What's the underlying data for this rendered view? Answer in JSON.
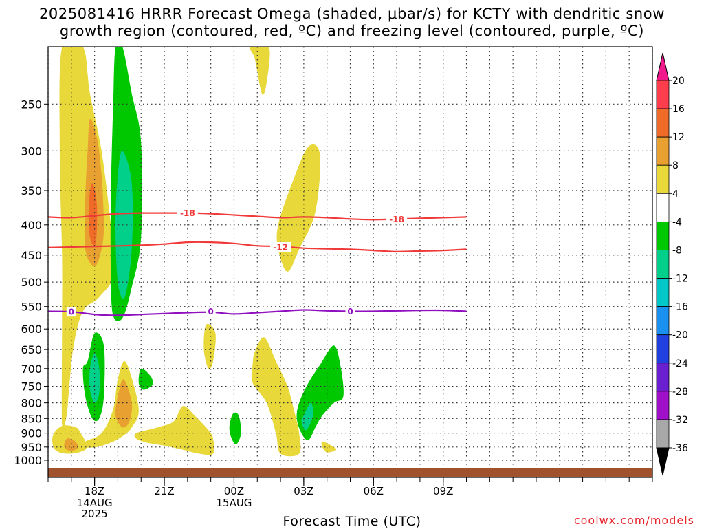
{
  "title_line1": "2025081416 HRRR Forecast Omega (shaded, μbar/s) for KCTY with dendritic snow",
  "title_line2": "growth region (contoured, red, ºC) and freezing level (contoured, purple, ºC)",
  "xlabel": "Forecast Time (UTC)",
  "credit": "coolwx.com/models",
  "chart_data": {
    "type": "heatmap",
    "title": "2025081416 HRRR Forecast Omega (shaded, μbar/s) for KCTY with dendritic snow growth region (contoured, red, ºC) and freezing level (contoured, purple, ºC)",
    "xlabel": "Forecast Time (UTC)",
    "ylabel": "",
    "x_range_hours": [
      16,
      42
    ],
    "y_axis": {
      "scale": "log-pressure",
      "reversed": true,
      "range_mb": [
        200,
        1030
      ],
      "ticks": [
        250,
        300,
        350,
        400,
        450,
        500,
        550,
        600,
        650,
        700,
        750,
        800,
        850,
        900,
        950,
        1000
      ]
    },
    "x_ticks": [
      {
        "hour": 18,
        "label": "18Z",
        "sub": [
          "14AUG",
          "2025"
        ]
      },
      {
        "hour": 21,
        "label": "21Z",
        "sub": []
      },
      {
        "hour": 24,
        "label": "00Z",
        "sub": [
          "15AUG"
        ]
      },
      {
        "hour": 27,
        "label": "03Z",
        "sub": []
      },
      {
        "hour": 30,
        "label": "06Z",
        "sub": []
      },
      {
        "hour": 33,
        "label": "09Z",
        "sub": []
      }
    ],
    "grid": true,
    "ground_color": "#a0522d",
    "colorbar": {
      "placement": "right",
      "labels": [
        "20",
        "16",
        "12",
        "8",
        "4",
        "-4",
        "-8",
        "-12",
        "-16",
        "-20",
        "-24",
        "-28",
        "-32",
        "-36"
      ],
      "colors": [
        "#ff3d4d",
        "#f06a28",
        "#e8a030",
        "#e8d83a",
        "#ffffff",
        "#00c800",
        "#00d08a",
        "#00c8c8",
        "#1a90f0",
        "#2040e0",
        "#6a1fd0",
        "#a010c8",
        "#a8a8a8"
      ],
      "top_arrow_color": "#f01a8c",
      "bottom_arrow_color": "#000000"
    },
    "contours": [
      {
        "name": "-18",
        "color": "#f03a3a",
        "points": [
          [
            16,
            388
          ],
          [
            17,
            389
          ],
          [
            18,
            386
          ],
          [
            19,
            383
          ],
          [
            20,
            382
          ],
          [
            21,
            382
          ],
          [
            22,
            382
          ],
          [
            23,
            383
          ],
          [
            24,
            385
          ],
          [
            25,
            387
          ],
          [
            26,
            389
          ],
          [
            27,
            388
          ],
          [
            28,
            389
          ],
          [
            29,
            391
          ],
          [
            30,
            392
          ],
          [
            31,
            391
          ],
          [
            32,
            390
          ],
          [
            33,
            389
          ],
          [
            34,
            388
          ]
        ],
        "label_at": [
          [
            22,
            382
          ],
          [
            31,
            391
          ]
        ]
      },
      {
        "name": "-12",
        "color": "#f03a3a",
        "points": [
          [
            16,
            437
          ],
          [
            17,
            436
          ],
          [
            18,
            435
          ],
          [
            19,
            434
          ],
          [
            20,
            433
          ],
          [
            21,
            431
          ],
          [
            22,
            428
          ],
          [
            23,
            428
          ],
          [
            24,
            430
          ],
          [
            25,
            434
          ],
          [
            26,
            435
          ],
          [
            27,
            438
          ],
          [
            28,
            439
          ],
          [
            29,
            440
          ],
          [
            30,
            442
          ],
          [
            31,
            444
          ],
          [
            32,
            443
          ],
          [
            33,
            442
          ],
          [
            34,
            440
          ]
        ],
        "label_at": [
          [
            26,
            436
          ]
        ]
      },
      {
        "name": "0",
        "color": "#9010c0",
        "points": [
          [
            16,
            560
          ],
          [
            17,
            561
          ],
          [
            18,
            567
          ],
          [
            19,
            569
          ],
          [
            20,
            567
          ],
          [
            21,
            565
          ],
          [
            22,
            563
          ],
          [
            23,
            562
          ],
          [
            24,
            566
          ],
          [
            25,
            563
          ],
          [
            26,
            560
          ],
          [
            27,
            557
          ],
          [
            28,
            559
          ],
          [
            29,
            560
          ],
          [
            30,
            560
          ],
          [
            31,
            559
          ],
          [
            32,
            558
          ],
          [
            33,
            558
          ],
          [
            34,
            560
          ]
        ],
        "label_at": [
          [
            17,
            561
          ],
          [
            23,
            560
          ],
          [
            29,
            560
          ]
        ]
      }
    ],
    "shaded_regions": [
      {
        "value_range": [
          4,
          8
        ],
        "color": "#e8d83a",
        "points": [
          [
            16.6,
            200
          ],
          [
            17.5,
            200
          ],
          [
            17.8,
            240
          ],
          [
            18.3,
            300
          ],
          [
            18.7,
            400
          ],
          [
            18.9,
            480
          ],
          [
            18.2,
            530
          ],
          [
            17.5,
            560
          ],
          [
            17.1,
            640
          ],
          [
            16.9,
            760
          ],
          [
            16.8,
            840
          ],
          [
            16.6,
            870
          ],
          [
            16.6,
            600
          ],
          [
            16.6,
            450
          ],
          [
            16.5,
            300
          ]
        ]
      },
      {
        "value_range": [
          8,
          12
        ],
        "color": "#e8a030",
        "points": [
          [
            17.8,
            265
          ],
          [
            18.1,
            285
          ],
          [
            18.3,
            330
          ],
          [
            18.4,
            400
          ],
          [
            18.3,
            440
          ],
          [
            18.0,
            470
          ],
          [
            17.6,
            440
          ],
          [
            17.6,
            360
          ],
          [
            17.7,
            300
          ]
        ]
      },
      {
        "value_range": [
          12,
          16
        ],
        "color": "#f06a28",
        "points": [
          [
            17.9,
            340
          ],
          [
            18.1,
            370
          ],
          [
            18.05,
            430
          ],
          [
            17.8,
            420
          ],
          [
            17.75,
            370
          ]
        ]
      },
      {
        "value_range": [
          -8,
          -4
        ],
        "color": "#00c800",
        "points": [
          [
            18.9,
            200
          ],
          [
            19.2,
            200
          ],
          [
            19.6,
            240
          ],
          [
            20.0,
            290
          ],
          [
            20.0,
            420
          ],
          [
            19.6,
            510
          ],
          [
            19.2,
            575
          ],
          [
            18.8,
            570
          ],
          [
            18.7,
            490
          ],
          [
            18.7,
            360
          ],
          [
            18.8,
            250
          ]
        ]
      },
      {
        "value_range": [
          -12,
          -8
        ],
        "color": "#00d08a",
        "points": [
          [
            19.2,
            300
          ],
          [
            19.6,
            340
          ],
          [
            19.6,
            440
          ],
          [
            19.3,
            530
          ],
          [
            19.0,
            500
          ],
          [
            18.9,
            400
          ],
          [
            19.0,
            330
          ]
        ]
      },
      {
        "value_range": [
          4,
          8
        ],
        "color": "#e8d83a",
        "points": [
          [
            16.2,
            910
          ],
          [
            16.6,
            875
          ],
          [
            17.2,
            880
          ],
          [
            17.4,
            900
          ],
          [
            17.6,
            930
          ],
          [
            17.6,
            960
          ],
          [
            16.9,
            975
          ],
          [
            16.3,
            960
          ]
        ]
      },
      {
        "value_range": [
          8,
          12
        ],
        "color": "#e8a030",
        "points": [
          [
            16.8,
            920
          ],
          [
            17.1,
            925
          ],
          [
            17.3,
            950
          ],
          [
            17.0,
            965
          ],
          [
            16.7,
            950
          ]
        ]
      },
      {
        "value_range": [
          -8,
          -4
        ],
        "color": "#00c800",
        "points": [
          [
            17.7,
            680
          ],
          [
            18.0,
            610
          ],
          [
            18.4,
            640
          ],
          [
            18.4,
            780
          ],
          [
            18.2,
            850
          ],
          [
            17.9,
            850
          ],
          [
            17.6,
            780
          ],
          [
            17.5,
            700
          ]
        ]
      },
      {
        "value_range": [
          -12,
          -8
        ],
        "color": "#00d08a",
        "points": [
          [
            18.0,
            660
          ],
          [
            18.2,
            700
          ],
          [
            18.2,
            770
          ],
          [
            18.0,
            800
          ],
          [
            17.8,
            760
          ],
          [
            17.8,
            700
          ]
        ]
      },
      {
        "value_range": [
          4,
          8
        ],
        "color": "#e8d83a",
        "points": [
          [
            17.6,
            930
          ],
          [
            18.3,
            900
          ],
          [
            18.8,
            820
          ],
          [
            19.0,
            730
          ],
          [
            19.3,
            680
          ],
          [
            19.7,
            750
          ],
          [
            19.9,
            830
          ],
          [
            19.6,
            880
          ],
          [
            19.3,
            905
          ],
          [
            18.8,
            930
          ],
          [
            18.1,
            950
          ],
          [
            17.6,
            950
          ]
        ]
      },
      {
        "value_range": [
          8,
          12
        ],
        "color": "#e8a030",
        "points": [
          [
            19.0,
            780
          ],
          [
            19.25,
            730
          ],
          [
            19.6,
            800
          ],
          [
            19.5,
            860
          ],
          [
            19.2,
            880
          ],
          [
            18.9,
            840
          ]
        ]
      },
      {
        "value_range": [
          -8,
          -4
        ],
        "color": "#00c800",
        "points": [
          [
            20.0,
            700
          ],
          [
            20.4,
            720
          ],
          [
            20.5,
            745
          ],
          [
            20.1,
            760
          ],
          [
            19.9,
            740
          ]
        ]
      },
      {
        "value_range": [
          4,
          8
        ],
        "color": "#e8d83a",
        "points": [
          [
            22.8,
            590
          ],
          [
            23.2,
            610
          ],
          [
            23.1,
            680
          ],
          [
            22.9,
            700
          ],
          [
            22.7,
            650
          ]
        ]
      },
      {
        "value_range": [
          4,
          8
        ],
        "color": "#e8d83a",
        "points": [
          [
            19.8,
            900
          ],
          [
            20.7,
            880
          ],
          [
            21.4,
            860
          ],
          [
            21.8,
            810
          ],
          [
            22.3,
            840
          ],
          [
            22.9,
            890
          ],
          [
            23.1,
            920
          ],
          [
            23.1,
            975
          ],
          [
            22.5,
            975
          ],
          [
            21.8,
            960
          ],
          [
            21.0,
            945
          ],
          [
            20.3,
            935
          ],
          [
            19.8,
            920
          ]
        ]
      },
      {
        "value_range": [
          -8,
          -4
        ],
        "color": "#00c800",
        "points": [
          [
            23.8,
            880
          ],
          [
            23.95,
            835
          ],
          [
            24.2,
            840
          ],
          [
            24.3,
            900
          ],
          [
            24.1,
            940
          ],
          [
            23.9,
            920
          ]
        ]
      },
      {
        "value_range": [
          4,
          8
        ],
        "color": "#e8d83a",
        "points": [
          [
            24.7,
            200
          ],
          [
            25.5,
            200
          ],
          [
            25.4,
            230
          ],
          [
            25.2,
            240
          ],
          [
            24.9,
            210
          ]
        ]
      },
      {
        "value_range": [
          4,
          8
        ],
        "color": "#e8d83a",
        "points": [
          [
            25.9,
            400
          ],
          [
            26.5,
            340
          ],
          [
            27.2,
            295
          ],
          [
            27.7,
            305
          ],
          [
            27.5,
            380
          ],
          [
            26.8,
            440
          ],
          [
            26.3,
            480
          ],
          [
            25.9,
            440
          ]
        ]
      },
      {
        "value_range": [
          4,
          8
        ],
        "color": "#e8d83a",
        "points": [
          [
            24.9,
            655
          ],
          [
            25.3,
            620
          ],
          [
            25.8,
            680
          ],
          [
            26.3,
            750
          ],
          [
            26.6,
            830
          ],
          [
            26.8,
            900
          ],
          [
            26.8,
            975
          ],
          [
            26.0,
            975
          ],
          [
            25.8,
            900
          ],
          [
            25.4,
            800
          ],
          [
            24.8,
            740
          ],
          [
            24.8,
            690
          ]
        ]
      },
      {
        "value_range": [
          -8,
          -4
        ],
        "color": "#00c800",
        "points": [
          [
            26.8,
            800
          ],
          [
            27.2,
            740
          ],
          [
            27.7,
            690
          ],
          [
            28.3,
            640
          ],
          [
            28.6,
            700
          ],
          [
            28.7,
            780
          ],
          [
            28.3,
            800
          ],
          [
            27.8,
            840
          ],
          [
            27.5,
            880
          ],
          [
            27.2,
            925
          ],
          [
            26.9,
            900
          ],
          [
            26.7,
            850
          ]
        ]
      },
      {
        "value_range": [
          -12,
          -8
        ],
        "color": "#00d08a",
        "points": [
          [
            27.0,
            840
          ],
          [
            27.3,
            800
          ],
          [
            27.4,
            840
          ],
          [
            27.1,
            890
          ],
          [
            26.9,
            860
          ]
        ]
      },
      {
        "value_range": [
          4,
          8
        ],
        "color": "#e8d83a",
        "points": [
          [
            27.8,
            930
          ],
          [
            28.2,
            945
          ],
          [
            28.4,
            960
          ],
          [
            28.0,
            970
          ],
          [
            27.8,
            950
          ]
        ]
      }
    ]
  }
}
